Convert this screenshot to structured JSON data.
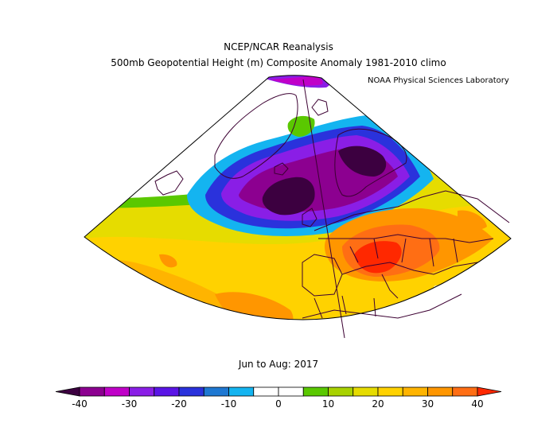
{
  "header": {
    "title": "NCEP/NCAR Reanalysis",
    "subtitle": "500mb Geopotential Height (m) Composite Anomaly 1981-2010 climo",
    "credit": "NOAA Physical Sciences Laboratory"
  },
  "period": "Jun to Aug: 2017",
  "colorbar": {
    "colors": [
      "#3c0040",
      "#8c0090",
      "#c000c8",
      "#8a1ee6",
      "#5a14e6",
      "#2a32dc",
      "#1e78d2",
      "#14b4f0",
      "#ffffff",
      "#ffffff",
      "#5ac800",
      "#a8d200",
      "#e6dc00",
      "#ffd200",
      "#ffb400",
      "#ff9600",
      "#ff6e14",
      "#ff2800"
    ],
    "tick_labels": [
      "-40",
      "-30",
      "-20",
      "-10",
      "0",
      "10",
      "20",
      "30",
      "40"
    ]
  },
  "map_colors": {
    "land_outline": "#3c0032",
    "deep_purple": "#3c0040",
    "purple": "#8a1ee6",
    "blue": "#2a32dc",
    "cyan": "#14b4f0",
    "white": "#ffffff",
    "green": "#5ac800",
    "light_yellow": "#e6dc00",
    "yellow": "#ffd200",
    "orange": "#ff9600",
    "red_orange": "#ff6e14",
    "red": "#ff2800"
  }
}
